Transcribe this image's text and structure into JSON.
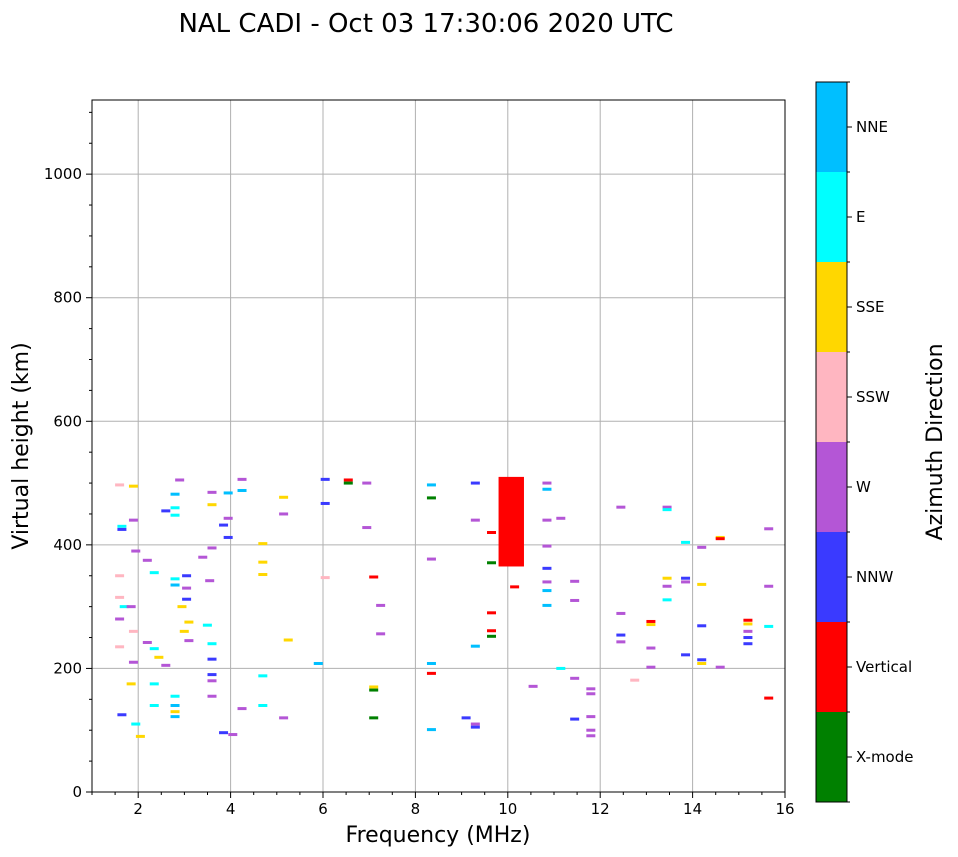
{
  "chart_data": {
    "type": "scatter",
    "title": "NAL CADI - Oct 03 17:30:06 2020 UTC",
    "xlabel": "Frequency (MHz)",
    "ylabel": "Virtual height (km)",
    "xlim": [
      1,
      16
    ],
    "ylim": [
      0,
      1120
    ],
    "xticks": [
      2,
      4,
      6,
      8,
      10,
      12,
      14,
      16
    ],
    "yticks": [
      0,
      200,
      400,
      600,
      800,
      1000
    ],
    "grid": true,
    "colorbar": {
      "label": "Azimuth Direction",
      "categories": [
        {
          "name": "X-mode",
          "color": "#008000"
        },
        {
          "name": "Vertical",
          "color": "#ff0000"
        },
        {
          "name": "NNW",
          "color": "#3a3aff"
        },
        {
          "name": "W",
          "color": "#b456d6"
        },
        {
          "name": "SSW",
          "color": "#ffb6c1"
        },
        {
          "name": "SSE",
          "color": "#ffd700"
        },
        {
          "name": "E",
          "color": "#00ffff"
        },
        {
          "name": "NNE",
          "color": "#00bfff"
        }
      ]
    },
    "echoes": [
      {
        "f": 1.5,
        "h": 497,
        "d": "SSW"
      },
      {
        "f": 1.8,
        "h": 495,
        "d": "SSE"
      },
      {
        "f": 1.55,
        "h": 430,
        "d": "E"
      },
      {
        "f": 1.55,
        "h": 425,
        "d": "NNW"
      },
      {
        "f": 1.8,
        "h": 440,
        "d": "W"
      },
      {
        "f": 1.85,
        "h": 390,
        "d": "W"
      },
      {
        "f": 1.5,
        "h": 350,
        "d": "SSW"
      },
      {
        "f": 1.5,
        "h": 315,
        "d": "SSW"
      },
      {
        "f": 1.6,
        "h": 300,
        "d": "E"
      },
      {
        "f": 1.75,
        "h": 300,
        "d": "W"
      },
      {
        "f": 1.5,
        "h": 280,
        "d": "W"
      },
      {
        "f": 1.8,
        "h": 260,
        "d": "SSW"
      },
      {
        "f": 1.5,
        "h": 235,
        "d": "SSW"
      },
      {
        "f": 1.8,
        "h": 210,
        "d": "W"
      },
      {
        "f": 1.75,
        "h": 175,
        "d": "SSE"
      },
      {
        "f": 1.55,
        "h": 125,
        "d": "NNW"
      },
      {
        "f": 1.85,
        "h": 110,
        "d": "E"
      },
      {
        "f": 1.95,
        "h": 90,
        "d": "SSE"
      },
      {
        "f": 2.1,
        "h": 375,
        "d": "W"
      },
      {
        "f": 2.25,
        "h": 355,
        "d": "E"
      },
      {
        "f": 2.1,
        "h": 242,
        "d": "W"
      },
      {
        "f": 2.25,
        "h": 232,
        "d": "E"
      },
      {
        "f": 2.5,
        "h": 205,
        "d": "W"
      },
      {
        "f": 2.35,
        "h": 218,
        "d": "SSE"
      },
      {
        "f": 2.25,
        "h": 175,
        "d": "E"
      },
      {
        "f": 2.25,
        "h": 140,
        "d": "E"
      },
      {
        "f": 2.5,
        "h": 455,
        "d": "NNW"
      },
      {
        "f": 2.7,
        "h": 460,
        "d": "E"
      },
      {
        "f": 2.7,
        "h": 448,
        "d": "E"
      },
      {
        "f": 2.7,
        "h": 482,
        "d": "NNE"
      },
      {
        "f": 2.8,
        "h": 505,
        "d": "W"
      },
      {
        "f": 2.7,
        "h": 345,
        "d": "E"
      },
      {
        "f": 2.7,
        "h": 335,
        "d": "NNE"
      },
      {
        "f": 2.95,
        "h": 350,
        "d": "NNW"
      },
      {
        "f": 2.95,
        "h": 330,
        "d": "W"
      },
      {
        "f": 2.95,
        "h": 312,
        "d": "NNW"
      },
      {
        "f": 2.85,
        "h": 300,
        "d": "SSE"
      },
      {
        "f": 3.0,
        "h": 275,
        "d": "SSE"
      },
      {
        "f": 2.9,
        "h": 260,
        "d": "SSE"
      },
      {
        "f": 3.0,
        "h": 245,
        "d": "W"
      },
      {
        "f": 2.7,
        "h": 155,
        "d": "E"
      },
      {
        "f": 2.7,
        "h": 140,
        "d": "NNE"
      },
      {
        "f": 2.7,
        "h": 130,
        "d": "SSE"
      },
      {
        "f": 2.7,
        "h": 122,
        "d": "NNE"
      },
      {
        "f": 3.3,
        "h": 380,
        "d": "W"
      },
      {
        "f": 3.5,
        "h": 395,
        "d": "W"
      },
      {
        "f": 3.45,
        "h": 342,
        "d": "W"
      },
      {
        "f": 3.4,
        "h": 270,
        "d": "E"
      },
      {
        "f": 3.5,
        "h": 240,
        "d": "E"
      },
      {
        "f": 3.5,
        "h": 215,
        "d": "NNW"
      },
      {
        "f": 3.5,
        "h": 190,
        "d": "NNW"
      },
      {
        "f": 3.5,
        "h": 180,
        "d": "W"
      },
      {
        "f": 3.5,
        "h": 155,
        "d": "W"
      },
      {
        "f": 3.5,
        "h": 485,
        "d": "W"
      },
      {
        "f": 3.5,
        "h": 465,
        "d": "SSE"
      },
      {
        "f": 3.75,
        "h": 432,
        "d": "NNW"
      },
      {
        "f": 3.85,
        "h": 484,
        "d": "NNE"
      },
      {
        "f": 3.85,
        "h": 443,
        "d": "W"
      },
      {
        "f": 3.85,
        "h": 412,
        "d": "NNW"
      },
      {
        "f": 3.75,
        "h": 96,
        "d": "NNW"
      },
      {
        "f": 3.95,
        "h": 93,
        "d": "W"
      },
      {
        "f": 4.15,
        "h": 506,
        "d": "W"
      },
      {
        "f": 4.15,
        "h": 488,
        "d": "NNE"
      },
      {
        "f": 4.15,
        "h": 135,
        "d": "W"
      },
      {
        "f": 4.6,
        "h": 402,
        "d": "SSE"
      },
      {
        "f": 4.6,
        "h": 372,
        "d": "SSE"
      },
      {
        "f": 4.6,
        "h": 352,
        "d": "SSE"
      },
      {
        "f": 4.6,
        "h": 188,
        "d": "E"
      },
      {
        "f": 4.6,
        "h": 140,
        "d": "E"
      },
      {
        "f": 5.05,
        "h": 477,
        "d": "SSE"
      },
      {
        "f": 5.05,
        "h": 450,
        "d": "W"
      },
      {
        "f": 5.15,
        "h": 246,
        "d": "SSE"
      },
      {
        "f": 5.05,
        "h": 120,
        "d": "W"
      },
      {
        "f": 5.8,
        "h": 208,
        "d": "NNE"
      },
      {
        "f": 5.95,
        "h": 506,
        "d": "NNW"
      },
      {
        "f": 5.95,
        "h": 467,
        "d": "NNW"
      },
      {
        "f": 5.95,
        "h": 347,
        "d": "SSW"
      },
      {
        "f": 6.45,
        "h": 505,
        "d": "Vertical"
      },
      {
        "f": 6.45,
        "h": 500,
        "d": "X-mode"
      },
      {
        "f": 6.85,
        "h": 500,
        "d": "W"
      },
      {
        "f": 6.85,
        "h": 428,
        "d": "W"
      },
      {
        "f": 7.0,
        "h": 348,
        "d": "Vertical"
      },
      {
        "f": 7.15,
        "h": 302,
        "d": "W"
      },
      {
        "f": 7.15,
        "h": 256,
        "d": "W"
      },
      {
        "f": 7.0,
        "h": 170,
        "d": "SSE"
      },
      {
        "f": 7.0,
        "h": 165,
        "d": "X-mode"
      },
      {
        "f": 7.0,
        "h": 120,
        "d": "X-mode"
      },
      {
        "f": 8.25,
        "h": 497,
        "d": "NNE"
      },
      {
        "f": 8.25,
        "h": 476,
        "d": "X-mode"
      },
      {
        "f": 8.25,
        "h": 377,
        "d": "W"
      },
      {
        "f": 8.25,
        "h": 208,
        "d": "NNE"
      },
      {
        "f": 8.25,
        "h": 192,
        "d": "Vertical"
      },
      {
        "f": 8.25,
        "h": 101,
        "d": "NNE"
      },
      {
        "f": 9.2,
        "h": 500,
        "d": "NNW"
      },
      {
        "f": 9.2,
        "h": 440,
        "d": "W"
      },
      {
        "f": 9.2,
        "h": 236,
        "d": "NNE"
      },
      {
        "f": 9.0,
        "h": 120,
        "d": "NNW"
      },
      {
        "f": 9.2,
        "h": 110,
        "d": "W"
      },
      {
        "f": 9.2,
        "h": 105,
        "d": "NNW"
      },
      {
        "f": 9.55,
        "h": 420,
        "d": "Vertical"
      },
      {
        "f": 9.55,
        "h": 371,
        "d": "X-mode"
      },
      {
        "f": 9.55,
        "h": 290,
        "d": "Vertical"
      },
      {
        "f": 9.55,
        "h": 261,
        "d": "Vertical"
      },
      {
        "f": 9.55,
        "h": 252,
        "d": "X-mode"
      },
      {
        "f": 10.05,
        "h": 332,
        "d": "Vertical"
      },
      {
        "f": 10.75,
        "h": 500,
        "d": "W"
      },
      {
        "f": 10.75,
        "h": 490,
        "d": "NNE"
      },
      {
        "f": 10.75,
        "h": 440,
        "d": "W"
      },
      {
        "f": 10.75,
        "h": 398,
        "d": "W"
      },
      {
        "f": 10.75,
        "h": 362,
        "d": "NNW"
      },
      {
        "f": 10.75,
        "h": 340,
        "d": "W"
      },
      {
        "f": 10.75,
        "h": 326,
        "d": "NNE"
      },
      {
        "f": 10.75,
        "h": 302,
        "d": "NNE"
      },
      {
        "f": 10.45,
        "h": 171,
        "d": "W"
      },
      {
        "f": 11.05,
        "h": 443,
        "d": "W"
      },
      {
        "f": 11.05,
        "h": 200,
        "d": "E"
      },
      {
        "f": 11.35,
        "h": 341,
        "d": "W"
      },
      {
        "f": 11.35,
        "h": 310,
        "d": "W"
      },
      {
        "f": 11.35,
        "h": 184,
        "d": "W"
      },
      {
        "f": 11.35,
        "h": 118,
        "d": "NNW"
      },
      {
        "f": 11.7,
        "h": 167,
        "d": "W"
      },
      {
        "f": 11.7,
        "h": 159,
        "d": "W"
      },
      {
        "f": 11.7,
        "h": 122,
        "d": "W"
      },
      {
        "f": 11.7,
        "h": 100,
        "d": "W"
      },
      {
        "f": 11.7,
        "h": 91,
        "d": "W"
      },
      {
        "f": 12.35,
        "h": 461,
        "d": "W"
      },
      {
        "f": 12.35,
        "h": 289,
        "d": "W"
      },
      {
        "f": 12.35,
        "h": 254,
        "d": "NNW"
      },
      {
        "f": 12.35,
        "h": 243,
        "d": "W"
      },
      {
        "f": 12.65,
        "h": 181,
        "d": "SSW"
      },
      {
        "f": 13.0,
        "h": 276,
        "d": "Vertical"
      },
      {
        "f": 13.0,
        "h": 271,
        "d": "SSE"
      },
      {
        "f": 13.0,
        "h": 233,
        "d": "W"
      },
      {
        "f": 13.0,
        "h": 202,
        "d": "W"
      },
      {
        "f": 13.35,
        "h": 461,
        "d": "W"
      },
      {
        "f": 13.35,
        "h": 457,
        "d": "E"
      },
      {
        "f": 13.35,
        "h": 346,
        "d": "SSE"
      },
      {
        "f": 13.35,
        "h": 333,
        "d": "W"
      },
      {
        "f": 13.35,
        "h": 311,
        "d": "E"
      },
      {
        "f": 13.75,
        "h": 404,
        "d": "E"
      },
      {
        "f": 13.75,
        "h": 346,
        "d": "NNW"
      },
      {
        "f": 13.75,
        "h": 340,
        "d": "W"
      },
      {
        "f": 13.75,
        "h": 222,
        "d": "NNW"
      },
      {
        "f": 14.1,
        "h": 396,
        "d": "W"
      },
      {
        "f": 14.1,
        "h": 336,
        "d": "SSE"
      },
      {
        "f": 14.1,
        "h": 269,
        "d": "NNW"
      },
      {
        "f": 14.1,
        "h": 214,
        "d": "NNW"
      },
      {
        "f": 14.1,
        "h": 208,
        "d": "SSE"
      },
      {
        "f": 14.5,
        "h": 412,
        "d": "SSE"
      },
      {
        "f": 14.5,
        "h": 410,
        "d": "Vertical"
      },
      {
        "f": 14.5,
        "h": 202,
        "d": "W"
      },
      {
        "f": 15.1,
        "h": 278,
        "d": "Vertical"
      },
      {
        "f": 15.1,
        "h": 272,
        "d": "SSE"
      },
      {
        "f": 15.1,
        "h": 260,
        "d": "W"
      },
      {
        "f": 15.1,
        "h": 250,
        "d": "NNW"
      },
      {
        "f": 15.1,
        "h": 240,
        "d": "NNW"
      },
      {
        "f": 15.55,
        "h": 426,
        "d": "W"
      },
      {
        "f": 15.55,
        "h": 333,
        "d": "W"
      },
      {
        "f": 15.55,
        "h": 268,
        "d": "E"
      },
      {
        "f": 15.55,
        "h": 152,
        "d": "Vertical"
      }
    ],
    "vertical_block": {
      "f_range": [
        9.8,
        10.35
      ],
      "h_range": [
        365,
        510
      ],
      "d": "Vertical"
    }
  }
}
